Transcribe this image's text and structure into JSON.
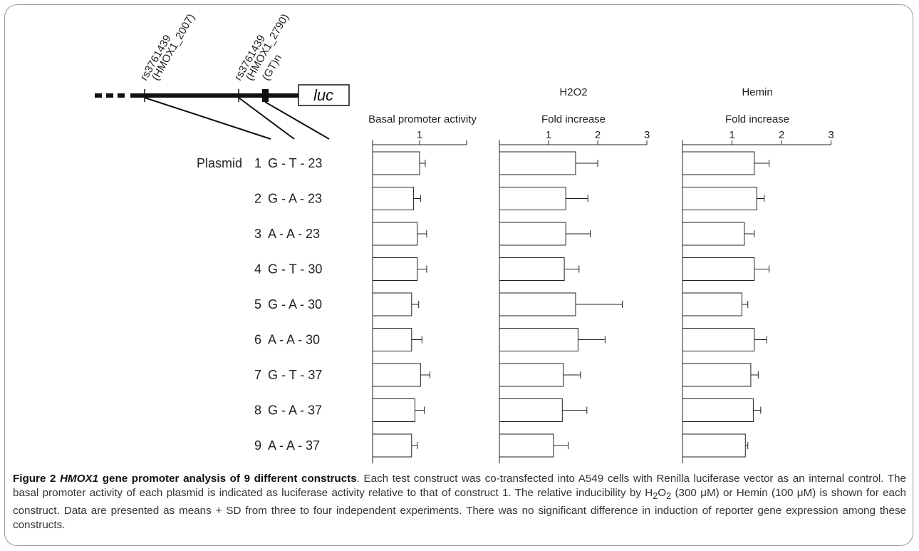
{
  "diagram": {
    "snp1_line1": "rs3761439",
    "snp1_line2": "(HMOX1_2007)",
    "snp2_line1": "rs3761439",
    "snp2_line2": "(HMOX1_2790)",
    "gt_label": "(GT)n",
    "luc_label": "luc"
  },
  "plasmid_prefix": "Plasmid",
  "plasmids": [
    {
      "number": "1",
      "genotype": "G - T - 23"
    },
    {
      "number": "2",
      "genotype": "G - A - 23"
    },
    {
      "number": "3",
      "genotype": "A - A - 23"
    },
    {
      "number": "4",
      "genotype": "G - T - 30"
    },
    {
      "number": "5",
      "genotype": "G - A - 30"
    },
    {
      "number": "6",
      "genotype": "A - A - 30"
    },
    {
      "number": "7",
      "genotype": "G - T - 37"
    },
    {
      "number": "8",
      "genotype": "G - A - 37"
    },
    {
      "number": "9",
      "genotype": "A - A - 37"
    }
  ],
  "chart_data": [
    {
      "type": "bar",
      "orientation": "horizontal",
      "title": "",
      "xlabel": "Basal promoter activity",
      "categories": [
        "1",
        "2",
        "3",
        "4",
        "5",
        "6",
        "7",
        "8",
        "9"
      ],
      "values": [
        1.0,
        0.87,
        0.95,
        0.95,
        0.83,
        0.83,
        1.02,
        0.9,
        0.83
      ],
      "errors": [
        0.12,
        0.15,
        0.2,
        0.2,
        0.15,
        0.22,
        0.2,
        0.2,
        0.12
      ],
      "xlim": [
        0,
        2
      ],
      "xticks": [
        1
      ],
      "xtick_labels": [
        "1"
      ]
    },
    {
      "type": "bar",
      "orientation": "horizontal",
      "title": "H2O2",
      "xlabel": "Fold increase",
      "categories": [
        "1",
        "2",
        "3",
        "4",
        "5",
        "6",
        "7",
        "8",
        "9"
      ],
      "values": [
        1.55,
        1.35,
        1.35,
        1.32,
        1.55,
        1.6,
        1.3,
        1.28,
        1.1
      ],
      "errors": [
        0.45,
        0.45,
        0.5,
        0.3,
        0.95,
        0.55,
        0.35,
        0.5,
        0.3
      ],
      "xlim": [
        0,
        3
      ],
      "xticks": [
        1,
        2,
        3
      ],
      "xtick_labels": [
        "1",
        "2",
        "3"
      ]
    },
    {
      "type": "bar",
      "orientation": "horizontal",
      "title": "Hemin",
      "xlabel": "Fold increase",
      "categories": [
        "1",
        "2",
        "3",
        "4",
        "5",
        "6",
        "7",
        "8",
        "9"
      ],
      "values": [
        1.45,
        1.5,
        1.25,
        1.45,
        1.2,
        1.45,
        1.38,
        1.43,
        1.27
      ],
      "errors": [
        0.3,
        0.15,
        0.2,
        0.3,
        0.12,
        0.25,
        0.15,
        0.15,
        0.05
      ],
      "xlim": [
        0,
        3
      ],
      "xticks": [
        1,
        2,
        3
      ],
      "xtick_labels": [
        "1",
        "2",
        "3"
      ]
    }
  ],
  "caption": {
    "figure_label": "Figure 2",
    "gene": "HMOX1",
    "title_rest": "gene promoter analysis of 9 different constructs",
    "text_a": ". Each test construct was co-transfected into A549 cells with Renilla luciferase vector as an internal control. The basal promoter activity of each plasmid is indicated as luciferase activity relative to that of construct 1. The relative inducibility by H",
    "sub1": "2",
    "text_b": "O",
    "sub2": "2",
    "text_c": " (300 μM) or Hemin (100 μM) is shown for each construct. Data are presented as means + SD from three to four independent experiments. There was no significant difference in induction of reporter gene expression among these constructs."
  }
}
